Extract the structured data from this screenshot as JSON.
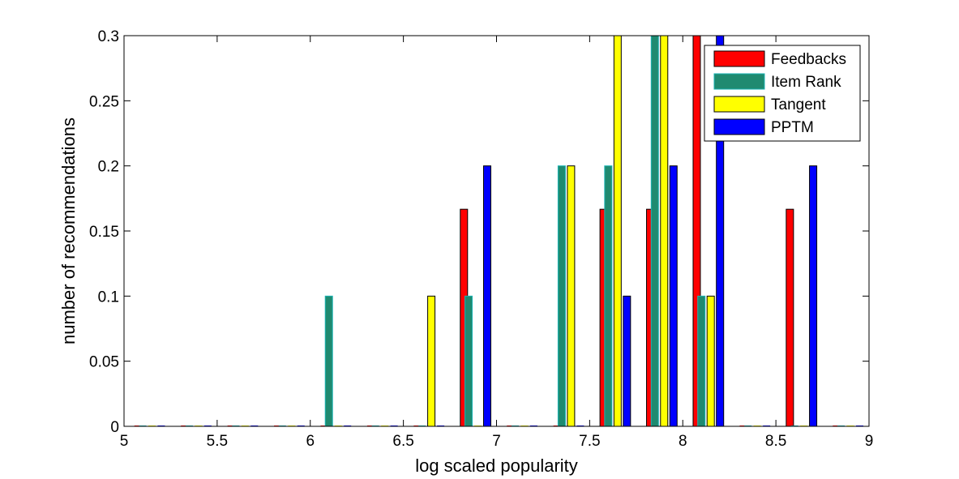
{
  "chart_data": {
    "type": "bar",
    "xlabel": "log scaled popularity",
    "ylabel": "number of recommendations",
    "xlim": [
      5,
      9
    ],
    "ylim": [
      0,
      0.3
    ],
    "x_ticks": [
      "5",
      "5.5",
      "6",
      "6.5",
      "7",
      "7.5",
      "8",
      "8.5",
      "9"
    ],
    "y_ticks": [
      "0",
      "0.05",
      "0.1",
      "0.15",
      "0.2",
      "0.25",
      "0.3"
    ],
    "grid": false,
    "legend_position": "top-right",
    "series": [
      {
        "name": "Feedbacks",
        "color": "#ff0000",
        "x": [
          5.075,
          5.325,
          5.575,
          5.825,
          6.075,
          6.325,
          6.575,
          6.825,
          7.075,
          7.325,
          7.575,
          7.825,
          8.075,
          8.325,
          8.575,
          8.825
        ],
        "values": [
          0,
          0,
          0,
          0,
          0,
          0,
          0,
          0.1667,
          0,
          0,
          0.1667,
          0.1667,
          0.3,
          0,
          0.1667,
          0
        ]
      },
      {
        "name": "Item Rank",
        "color": "#1f8a70",
        "x": [
          5.1,
          5.35,
          5.6,
          5.85,
          6.1,
          6.35,
          6.6,
          6.85,
          7.1,
          7.35,
          7.6,
          7.85,
          8.1,
          8.35,
          8.6,
          8.85
        ],
        "values": [
          0,
          0,
          0,
          0,
          0.1,
          0,
          0,
          0.1,
          0,
          0.2,
          0.2,
          0.3,
          0.1,
          0,
          0,
          0
        ]
      },
      {
        "name": "Tangent",
        "color": "#ffff00",
        "x": [
          5.15,
          5.4,
          5.65,
          5.9,
          6.15,
          6.4,
          6.65,
          6.9,
          7.15,
          7.4,
          7.65,
          7.9,
          8.15,
          8.4,
          8.65,
          8.9
        ],
        "values": [
          0,
          0,
          0,
          0,
          0,
          0,
          0.1,
          0,
          0,
          0.2,
          0.3,
          0.3,
          0.1,
          0,
          0,
          0
        ]
      },
      {
        "name": "PPTM",
        "color": "#0000ff",
        "x": [
          5.2,
          5.45,
          5.7,
          5.95,
          6.2,
          6.45,
          6.7,
          6.95,
          7.2,
          7.45,
          7.7,
          7.95,
          8.2,
          8.45,
          8.7,
          8.95
        ],
        "values": [
          0,
          0,
          0,
          0,
          0,
          0,
          0,
          0.2,
          0,
          0,
          0.1,
          0.2,
          0.3,
          0,
          0.2,
          0
        ]
      }
    ]
  }
}
